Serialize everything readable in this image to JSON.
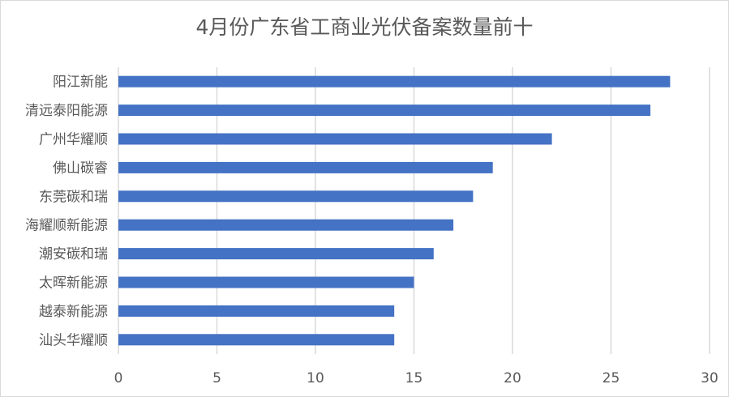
{
  "chart_data": {
    "type": "bar",
    "orientation": "horizontal",
    "title": "4月份广东省工商业光伏备案数量前十",
    "categories": [
      "阳江新能",
      "清远泰阳能源",
      "广州华耀顺",
      "佛山碳睿",
      "东莞碳和瑞",
      "海耀顺新能源",
      "潮安碳和瑞",
      "太晖新能源",
      "越泰新能源",
      "汕头华耀顺"
    ],
    "values": [
      28,
      27,
      22,
      19,
      18,
      17,
      16,
      15,
      14,
      14
    ],
    "xlim": [
      0,
      30
    ],
    "xticks": [
      "0",
      "5",
      "10",
      "15",
      "20",
      "25",
      "30"
    ],
    "grid": "vertical",
    "bar_color": "#4472c4",
    "grid_color": "#d9d9d9",
    "legend": "none"
  }
}
